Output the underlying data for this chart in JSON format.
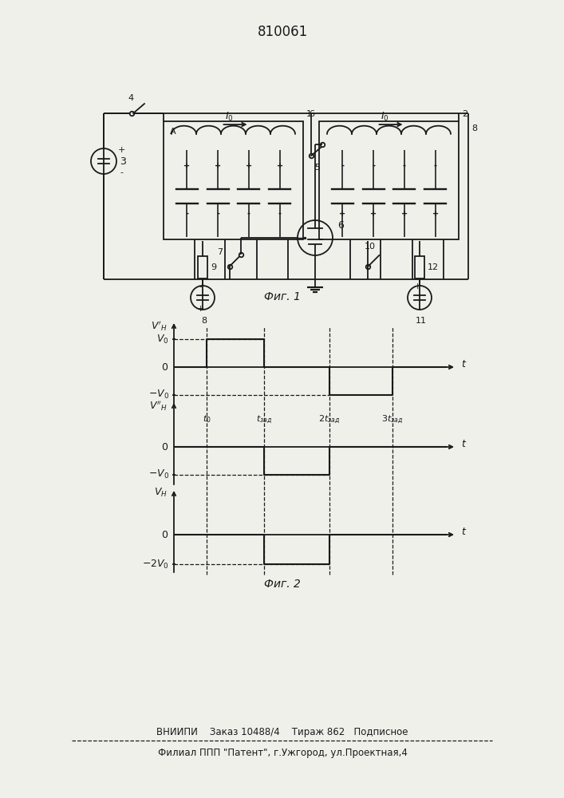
{
  "title": "810061",
  "fig1_caption": "Фиг. 1",
  "fig2_caption": "Фиг. 2",
  "footer_line1": "ВНИИПИ    Заказ 10488/4    Тираж 862   Подписное",
  "footer_line2": "Филиал ППП \"Патент\", г.Ужгород, ул.Проектная,4",
  "bg_color": "#f0f0eb",
  "line_color": "#1a1a1a"
}
